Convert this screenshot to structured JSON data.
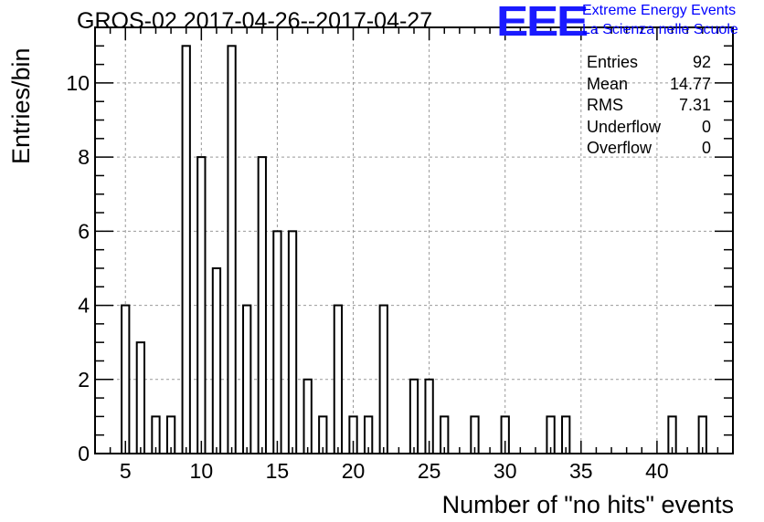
{
  "title": "GROS-02 2017-04-26--2017-04-27",
  "logo": {
    "mark": "EEE",
    "line1": "Extreme Energy Events",
    "line2": "La Scienza nelle Scuole"
  },
  "stats": [
    {
      "label": "Entries",
      "value": "92"
    },
    {
      "label": "Mean",
      "value": "14.77"
    },
    {
      "label": "RMS",
      "value": "7.31"
    },
    {
      "label": "Underflow",
      "value": "0"
    },
    {
      "label": "Overflow",
      "value": "0"
    }
  ],
  "chart_data": {
    "type": "bar",
    "title": "GROS-02 2017-04-26--2017-04-27",
    "xlabel": "Number of \"no hits\" events",
    "ylabel": "Entries/bin",
    "xlim": [
      3,
      45
    ],
    "ylim": [
      0,
      11.5
    ],
    "xticks": [
      5,
      10,
      15,
      20,
      25,
      30,
      35,
      40
    ],
    "yticks": [
      0,
      2,
      4,
      6,
      8,
      10
    ],
    "grid": true,
    "bin_width": 0.5,
    "x": [
      5,
      6,
      7,
      8,
      9,
      10,
      11,
      12,
      13,
      14,
      15,
      16,
      17,
      18,
      19,
      20,
      21,
      22,
      24,
      25,
      26,
      28,
      30,
      33,
      34,
      41,
      43
    ],
    "values": [
      4,
      3,
      1,
      1,
      11,
      8,
      5,
      11,
      4,
      8,
      6,
      6,
      2,
      1,
      4,
      1,
      1,
      4,
      2,
      2,
      1,
      1,
      1,
      1,
      1,
      1,
      1
    ]
  }
}
